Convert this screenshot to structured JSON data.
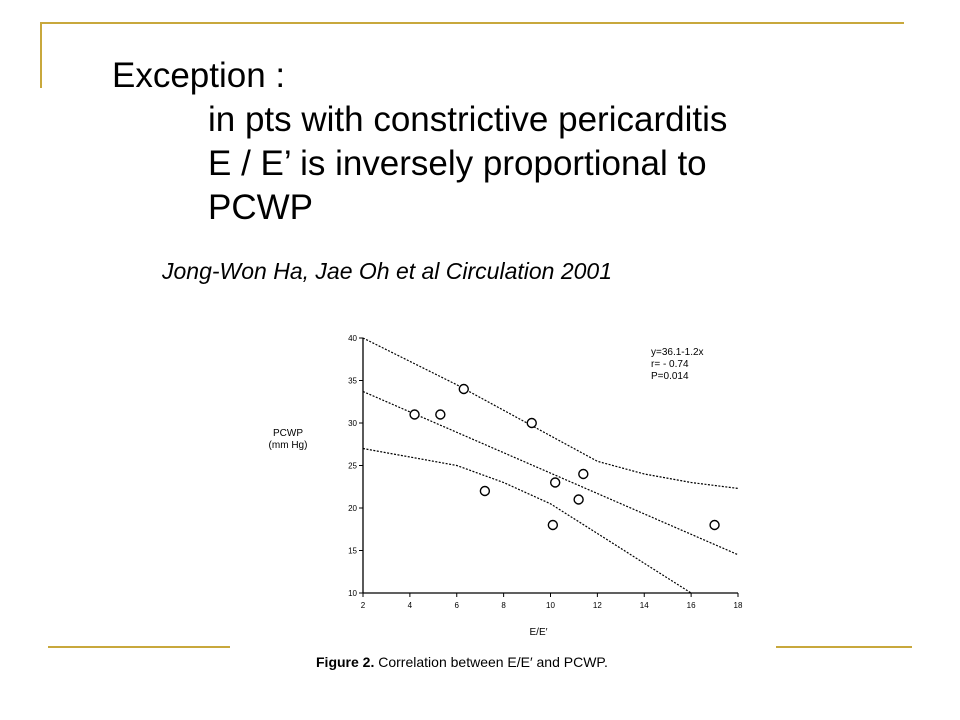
{
  "slide": {
    "heading": "Exception :",
    "lines": [
      "in pts with constrictive pericarditis",
      "E / E’ is inversely proportional to",
      "PCWP"
    ],
    "citation": "Jong-Won Ha, Jae Oh et al   Circulation  2001"
  },
  "theme": {
    "accent": "#c8a83c"
  },
  "figure": {
    "caption_label": "Figure 2.",
    "caption_text": "Correlation between E/E′ and PCWP."
  },
  "chart_data": {
    "type": "scatter",
    "xlabel": "E/E′",
    "ylabel_line1": "PCWP",
    "ylabel_line2": "(mm Hg)",
    "xlim": [
      2,
      18
    ],
    "ylim": [
      10,
      40
    ],
    "xticks": [
      2,
      4,
      6,
      8,
      10,
      12,
      14,
      16,
      18
    ],
    "yticks": [
      10,
      15,
      20,
      25,
      30,
      35,
      40
    ],
    "points": [
      {
        "x": 4.2,
        "y": 31
      },
      {
        "x": 5.3,
        "y": 31
      },
      {
        "x": 6.3,
        "y": 34
      },
      {
        "x": 7.2,
        "y": 22
      },
      {
        "x": 9.2,
        "y": 30
      },
      {
        "x": 10.1,
        "y": 18
      },
      {
        "x": 10.2,
        "y": 23
      },
      {
        "x": 11.2,
        "y": 21
      },
      {
        "x": 11.4,
        "y": 24
      },
      {
        "x": 17.0,
        "y": 18
      }
    ],
    "regression": {
      "intercept": 36.1,
      "slope": -1.2
    },
    "ci_upper": [
      [
        2,
        40
      ],
      [
        6,
        34.5
      ],
      [
        10,
        28.5
      ],
      [
        12,
        25.5
      ],
      [
        14,
        24
      ],
      [
        16,
        23
      ],
      [
        18,
        22.3
      ]
    ],
    "ci_lower": [
      [
        2,
        27
      ],
      [
        6,
        25
      ],
      [
        8,
        23
      ],
      [
        10,
        20.5
      ],
      [
        12,
        17
      ],
      [
        14,
        13.5
      ],
      [
        16,
        10
      ]
    ],
    "annotations": [
      "y=36.1-1.2x",
      "r= - 0.74",
      "P=0.014"
    ]
  }
}
